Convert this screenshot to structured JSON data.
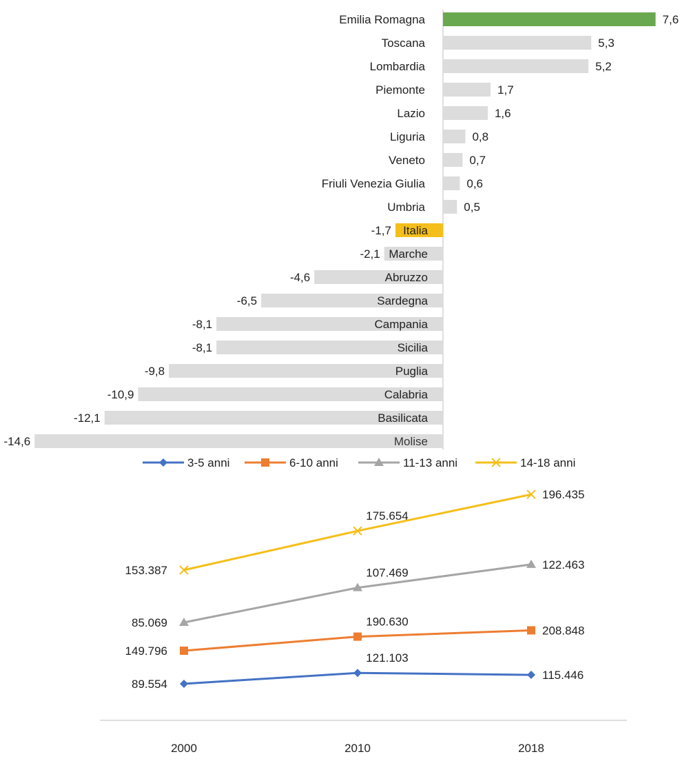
{
  "chart_data": [
    {
      "type": "bar",
      "orientation": "horizontal",
      "categories": [
        "Emilia Romagna",
        "Toscana",
        "Lombardia",
        "Piemonte",
        "Lazio",
        "Liguria",
        "Veneto",
        "Friuli Venezia Giulia",
        "Umbria",
        "Italia",
        "Marche",
        "Abruzzo",
        "Sardegna",
        "Campania",
        "Sicilia",
        "Puglia",
        "Calabria",
        "Basilicata",
        "Molise"
      ],
      "values": [
        7.6,
        5.3,
        5.2,
        1.7,
        1.6,
        0.8,
        0.7,
        0.6,
        0.5,
        -1.7,
        -2.1,
        -4.6,
        -6.5,
        -8.1,
        -8.1,
        -9.8,
        -10.9,
        -12.1,
        -14.6
      ],
      "value_labels": [
        "7,6",
        "5,3",
        "5,2",
        "1,7",
        "1,6",
        "0,8",
        "0,7",
        "0,6",
        "0,5",
        "-1,7",
        "-2,1",
        "-4,6",
        "-6,5",
        "-8,1",
        "-8,1",
        "-9,8",
        "-10,9",
        "-12,1",
        "-14,6"
      ],
      "colors": {
        "default": "#dcdcdc",
        "Emilia Romagna": "#6aa84f",
        "Italia": "#f4bf1a"
      }
    },
    {
      "type": "line",
      "x": [
        "2000",
        "2010",
        "2018"
      ],
      "series": [
        {
          "name": "3-5 anni",
          "values": [
            89554,
            121103,
            115446
          ],
          "labels": [
            "89.554",
            "121.103",
            "115.446"
          ],
          "color": "#4472c4",
          "marker": "diamond"
        },
        {
          "name": "6-10 anni",
          "values": [
            149796,
            190630,
            208848
          ],
          "labels": [
            "149.796",
            "190.630",
            "208.848"
          ],
          "color": "#ed7d31",
          "marker": "square"
        },
        {
          "name": "11-13 anni",
          "values": [
            85069,
            107469,
            122463
          ],
          "labels": [
            "85.069",
            "107.469",
            "122.463"
          ],
          "color": "#a5a5a5",
          "marker": "triangle"
        },
        {
          "name": "14-18 anni",
          "values": [
            153387,
            175654,
            196435
          ],
          "labels": [
            "153.387",
            "175.654",
            "196.435"
          ],
          "color": "#f4bf1a",
          "marker": "x"
        }
      ],
      "legend_position": "top"
    }
  ]
}
